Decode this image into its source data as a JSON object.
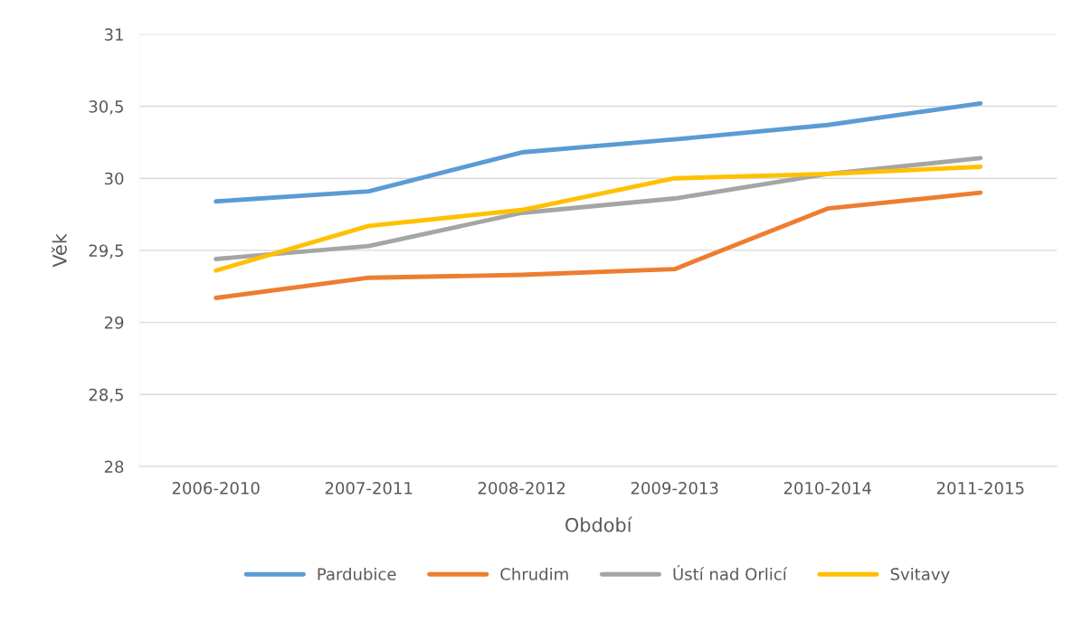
{
  "chart_data": {
    "type": "line",
    "xlabel": "Období",
    "ylabel": "Věk",
    "categories": [
      "2006-2010",
      "2007-2011",
      "2008-2012",
      "2009-2013",
      "2010-2014",
      "2011-2015"
    ],
    "series": [
      {
        "name": "Pardubice",
        "color": "#5b9bd5",
        "values": [
          29.84,
          29.91,
          30.18,
          30.27,
          30.37,
          30.52
        ]
      },
      {
        "name": "Chrudim",
        "color": "#ed7d31",
        "values": [
          29.17,
          29.31,
          29.33,
          29.37,
          29.79,
          29.9
        ]
      },
      {
        "name": "Ústí nad Orlicí",
        "color": "#a5a5a5",
        "values": [
          29.44,
          29.53,
          29.76,
          29.86,
          30.03,
          30.14
        ]
      },
      {
        "name": "Svitavy",
        "color": "#ffc000",
        "values": [
          29.36,
          29.67,
          29.78,
          30.0,
          30.03,
          30.08
        ]
      }
    ],
    "ylim": [
      28,
      31
    ],
    "yticks": [
      28,
      {
        "value": 28.5,
        "label": "28,5"
      },
      29,
      {
        "value": 29.5,
        "label": "29,5"
      },
      30,
      {
        "value": 30.5,
        "label": "30,5"
      },
      31
    ],
    "grid": "y",
    "legend": "bottom",
    "marker": "none",
    "line_style": "solid"
  }
}
